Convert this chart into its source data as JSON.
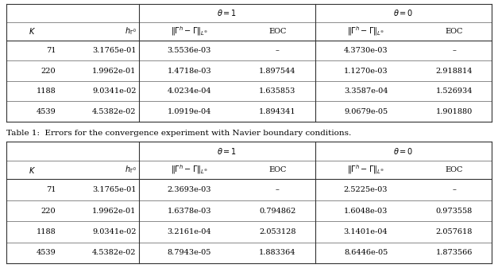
{
  "caption": "Table 1:  Errors for the convergence experiment with Navier boundary conditions.",
  "table1": {
    "rows": [
      [
        "71",
        "3.1765e-01",
        "3.5536e-03",
        "–",
        "4.3730e-03",
        "–"
      ],
      [
        "220",
        "1.9962e-01",
        "1.4718e-03",
        "1.897544",
        "1.1270e-03",
        "2.918814"
      ],
      [
        "1188",
        "9.0341e-02",
        "4.0234e-04",
        "1.635853",
        "3.3587e-04",
        "1.526934"
      ],
      [
        "4539",
        "4.5382e-02",
        "1.0919e-04",
        "1.894341",
        "9.0679e-05",
        "1.901880"
      ]
    ]
  },
  "table2": {
    "rows": [
      [
        "71",
        "3.1765e-01",
        "2.3693e-03",
        "–",
        "2.5225e-03",
        "–"
      ],
      [
        "220",
        "1.9962e-01",
        "1.6378e-03",
        "0.794862",
        "1.6048e-03",
        "0.973558"
      ],
      [
        "1188",
        "9.0341e-02",
        "3.2161e-04",
        "2.053128",
        "3.1401e-04",
        "2.057618"
      ],
      [
        "4539",
        "4.5382e-02",
        "8.7943e-05",
        "1.883364",
        "8.6446e-05",
        "1.873566"
      ]
    ]
  },
  "bg_color": "#ffffff",
  "table_bg": "#ffffff",
  "border_color": "#333333",
  "font_size": 7.0,
  "caption_font_size": 7.5
}
